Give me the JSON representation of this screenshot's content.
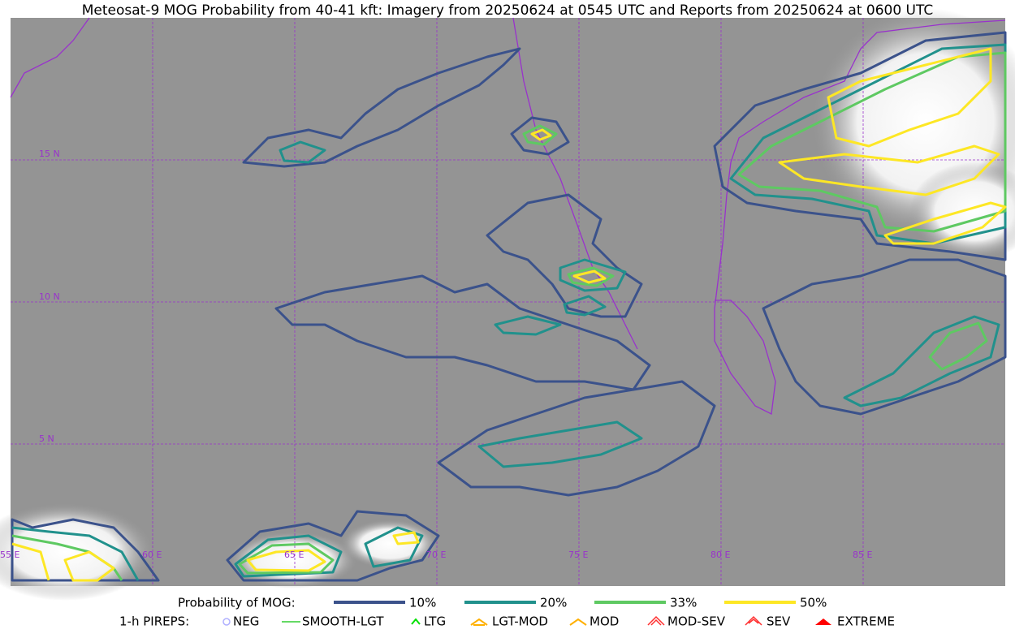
{
  "title": "Meteosat-9 MOG Probability from 40-41 kft: Imagery from 20250624 at 0545 UTC and Reports from 20250624 at 0600 UTC",
  "map": {
    "lat_labels": [
      "15 N",
      "10 N",
      "5 N"
    ],
    "lon_labels": [
      "55 E",
      "60 E",
      "65 E",
      "70 E",
      "75 E",
      "80 E",
      "85 E"
    ]
  },
  "legend": {
    "probability": {
      "label": "Probability of MOG:",
      "items": [
        "10%",
        "20%",
        "33%",
        "50%"
      ]
    },
    "pireps": {
      "label": "1-h PIREPS:",
      "items": [
        "NEG",
        "SMOOTH-LGT",
        "LTG",
        "LGT-MOD",
        "MOD",
        "MOD-SEV",
        "SEV",
        "EXTREME"
      ]
    }
  }
}
